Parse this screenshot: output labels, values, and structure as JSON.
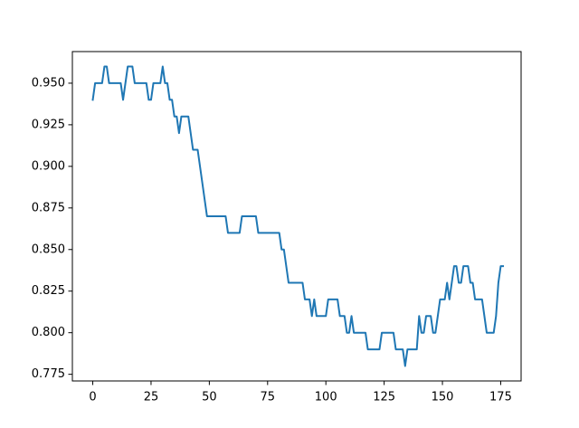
{
  "chart_data": {
    "type": "line",
    "title": "",
    "xlabel": "",
    "ylabel": "",
    "xlim": [
      -8.75,
      183.75
    ],
    "ylim": [
      0.771,
      0.969
    ],
    "x_ticks": [
      0,
      25,
      50,
      75,
      100,
      125,
      150,
      175
    ],
    "y_ticks": [
      0.775,
      0.8,
      0.825,
      0.85,
      0.875,
      0.9,
      0.925,
      0.95
    ],
    "y_tick_labels": [
      "0.775",
      "0.800",
      "0.825",
      "0.850",
      "0.875",
      "0.900",
      "0.925",
      "0.950"
    ],
    "grid": false,
    "legend": "none",
    "series": [
      {
        "color": "#1f77b4",
        "x_start": 0,
        "x_step": 1,
        "values": [
          0.94,
          0.95,
          0.95,
          0.95,
          0.95,
          0.96,
          0.96,
          0.95,
          0.95,
          0.95,
          0.95,
          0.95,
          0.95,
          0.94,
          0.95,
          0.96,
          0.96,
          0.96,
          0.95,
          0.95,
          0.95,
          0.95,
          0.95,
          0.95,
          0.94,
          0.94,
          0.95,
          0.95,
          0.95,
          0.95,
          0.96,
          0.95,
          0.95,
          0.94,
          0.94,
          0.93,
          0.93,
          0.92,
          0.93,
          0.93,
          0.93,
          0.93,
          0.92,
          0.91,
          0.91,
          0.91,
          0.9,
          0.89,
          0.88,
          0.87,
          0.87,
          0.87,
          0.87,
          0.87,
          0.87,
          0.87,
          0.87,
          0.87,
          0.86,
          0.86,
          0.86,
          0.86,
          0.86,
          0.86,
          0.87,
          0.87,
          0.87,
          0.87,
          0.87,
          0.87,
          0.87,
          0.86,
          0.86,
          0.86,
          0.86,
          0.86,
          0.86,
          0.86,
          0.86,
          0.86,
          0.86,
          0.85,
          0.85,
          0.84,
          0.83,
          0.83,
          0.83,
          0.83,
          0.83,
          0.83,
          0.83,
          0.82,
          0.82,
          0.82,
          0.81,
          0.82,
          0.81,
          0.81,
          0.81,
          0.81,
          0.81,
          0.82,
          0.82,
          0.82,
          0.82,
          0.82,
          0.81,
          0.81,
          0.81,
          0.8,
          0.8,
          0.81,
          0.8,
          0.8,
          0.8,
          0.8,
          0.8,
          0.8,
          0.79,
          0.79,
          0.79,
          0.79,
          0.79,
          0.79,
          0.8,
          0.8,
          0.8,
          0.8,
          0.8,
          0.8,
          0.79,
          0.79,
          0.79,
          0.79,
          0.78,
          0.79,
          0.79,
          0.79,
          0.79,
          0.79,
          0.81,
          0.8,
          0.8,
          0.81,
          0.81,
          0.81,
          0.8,
          0.8,
          0.81,
          0.82,
          0.82,
          0.82,
          0.83,
          0.82,
          0.83,
          0.84,
          0.84,
          0.83,
          0.83,
          0.84,
          0.84,
          0.84,
          0.83,
          0.83,
          0.82,
          0.82,
          0.82,
          0.82,
          0.81,
          0.8,
          0.8,
          0.8,
          0.8,
          0.81,
          0.83,
          0.84,
          0.84
        ]
      }
    ]
  }
}
